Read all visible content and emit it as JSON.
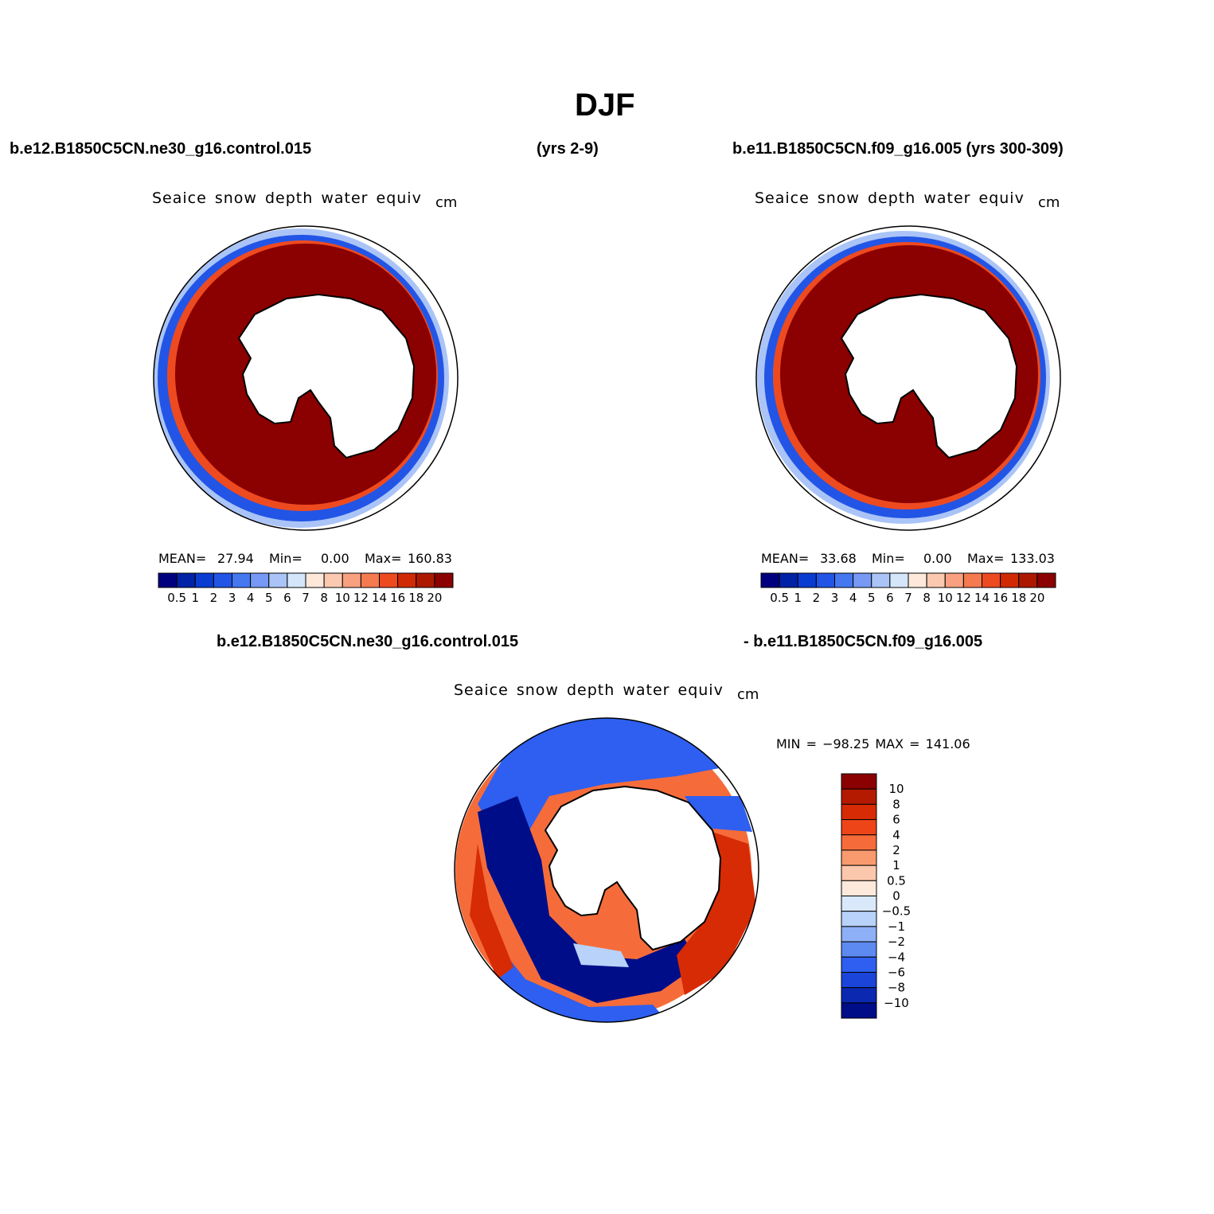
{
  "figure": {
    "season_title": "DJF",
    "case1_name": "b.e12.B1850C5CN.ne30_g16.control.015",
    "case1_years": "(yrs 2-9)",
    "case2_label": "b.e11.B1850C5CN.f09_g16.005 (yrs 300-309)",
    "diff_case1": "b.e12.B1850C5CN.ne30_g16.control.015",
    "diff_case2": "- b.e11.B1850C5CN.f09_g16.005"
  },
  "panels": [
    {
      "variable": "Seaice snow depth water equiv",
      "units": "cm",
      "mean_label": "MEAN=",
      "mean_value": "27.94",
      "min_label": "Min=",
      "min_value": "0.00",
      "max_label": "Max=",
      "max_value": "160.83"
    },
    {
      "variable": "Seaice snow depth water equiv",
      "units": "cm",
      "mean_label": "MEAN=",
      "mean_value": "33.68",
      "min_label": "Min=",
      "min_value": "0.00",
      "max_label": "Max=",
      "max_value": "133.03"
    },
    {
      "variable": "Seaice snow depth water equiv",
      "units": "cm",
      "minmax_text": "MIN = −98.25 MAX = 141.06"
    }
  ],
  "colorbar_abs": {
    "ticks": [
      "0.5",
      "1",
      "2",
      "3",
      "4",
      "5",
      "6",
      "7",
      "8",
      "10",
      "12",
      "14",
      "16",
      "18",
      "20"
    ],
    "colors": [
      "#00007f",
      "#0022a6",
      "#0a3cd2",
      "#2255e6",
      "#4477f0",
      "#7799f5",
      "#aac4f7",
      "#d5e6fb",
      "#fde8da",
      "#fbc9b0",
      "#f9a080",
      "#f57a50",
      "#ee4a20",
      "#d02a05",
      "#ad1900",
      "#8b0000"
    ]
  },
  "colorbar_diff": {
    "ticks": [
      "10",
      "8",
      "6",
      "4",
      "2",
      "1",
      "0.5",
      "0",
      "−0.5",
      "−1",
      "−2",
      "−4",
      "−6",
      "−8",
      "−10"
    ],
    "colors": [
      "#8b0000",
      "#b31a00",
      "#d62b05",
      "#ee4518",
      "#f56c3a",
      "#f99a6e",
      "#fcc8ad",
      "#fde8dc",
      "#d9e9fb",
      "#b8d2fa",
      "#8db0f6",
      "#5d8af1",
      "#2e5ff0",
      "#1a45d8",
      "#0a28b0",
      "#000d88"
    ]
  },
  "map_colors": {
    "ice_high": "#8b0000",
    "edge_orange": "#ee4a20",
    "edge_blue": "#2255e6",
    "edge_navy": "#00007f",
    "edge_light": "#aac4f7",
    "land": "#ffffff",
    "diff_navy": "#000d88",
    "diff_blue": "#2e5ff0",
    "diff_light": "#b8d2fa",
    "diff_red": "#d62b05",
    "diff_orange": "#f56c3a",
    "diff_dark": "#b31a00"
  }
}
